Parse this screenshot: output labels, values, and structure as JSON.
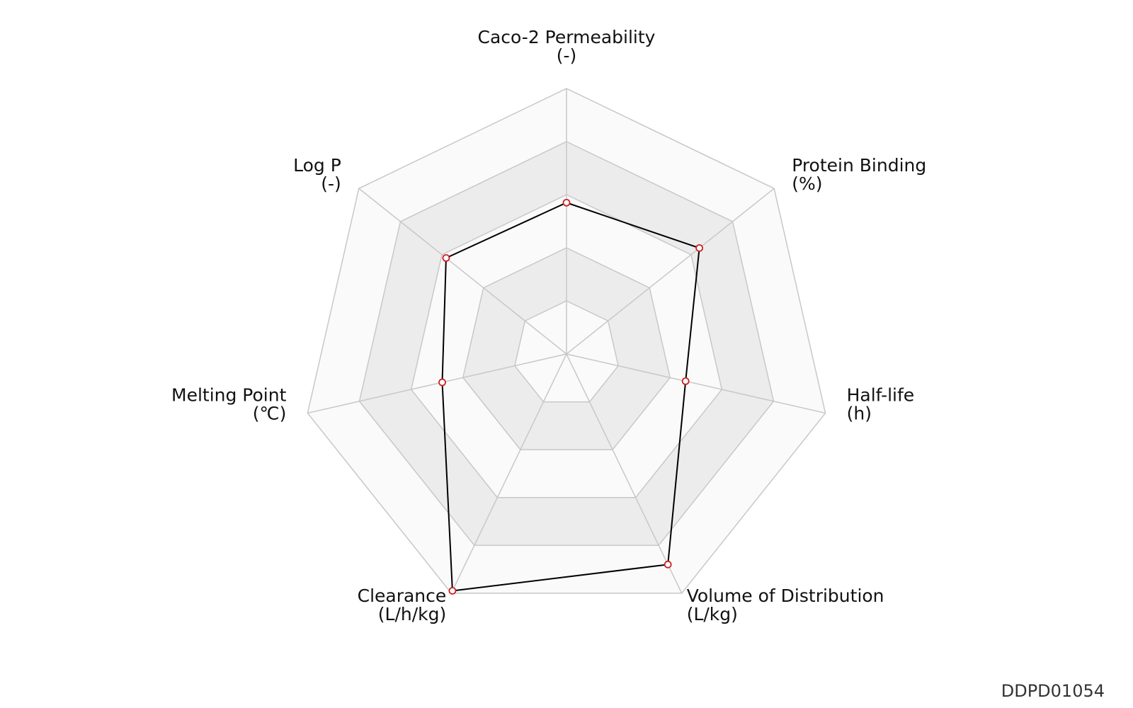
{
  "chart_data": {
    "type": "radar",
    "axes": [
      {
        "name": "Caco-2 Permeability",
        "unit": "(-)",
        "value": 0.57
      },
      {
        "name": "Protein Binding",
        "unit": "(%)",
        "value": 0.64
      },
      {
        "name": "Half-life",
        "unit": "(h)",
        "value": 0.46
      },
      {
        "name": "Volume of Distribution",
        "unit": "(L/kg)",
        "value": 0.88
      },
      {
        "name": "Clearance",
        "unit": "(L/h/kg)",
        "value": 0.99
      },
      {
        "name": "Melting Point",
        "unit": "(℃)",
        "value": 0.48
      },
      {
        "name": "Log P",
        "unit": "(-)",
        "value": 0.58
      }
    ],
    "rings": 5,
    "range": [
      0,
      1
    ],
    "colors": {
      "band_light": "#fafafa",
      "band_dark": "#ececec",
      "grid_line": "#c8c8c8",
      "series_line": "#000000",
      "marker_edge": "#cc2222",
      "marker_fill": "#ffffff"
    }
  },
  "footer": {
    "id_label": "DDPD01054"
  }
}
